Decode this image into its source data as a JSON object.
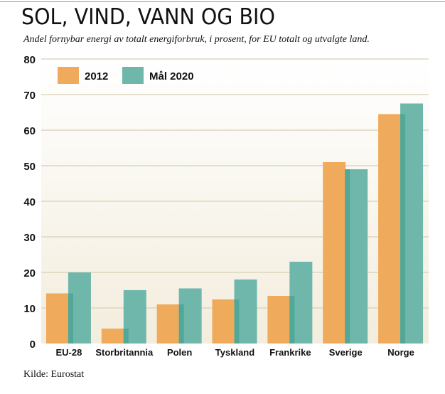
{
  "title": "SOL, VIND, VANN OG BIO",
  "subtitle": "Andel fornybar energi av totalt energiforbruk, i prosent, for EU totalt og utvalgte land.",
  "source": "Kilde: Eurostat",
  "chart_data": {
    "type": "bar",
    "categories": [
      "EU-28",
      "Storbritannia",
      "Polen",
      "Tyskland",
      "Frankrike",
      "Sverige",
      "Norge"
    ],
    "series": [
      {
        "name": "2012",
        "color": "#f0aa5c",
        "values": [
          14.1,
          4.2,
          11.0,
          12.4,
          13.4,
          51.0,
          64.5
        ]
      },
      {
        "name": "Mål 2020",
        "color": "#6fb7ab",
        "values": [
          20,
          15,
          15.5,
          18,
          23,
          49,
          67.5
        ]
      }
    ],
    "ylim": [
      0,
      80
    ],
    "yticks": [
      0,
      10,
      20,
      30,
      40,
      50,
      60,
      70,
      80
    ],
    "grid": true,
    "legend": "top-left",
    "xlabel": "",
    "ylabel": ""
  }
}
